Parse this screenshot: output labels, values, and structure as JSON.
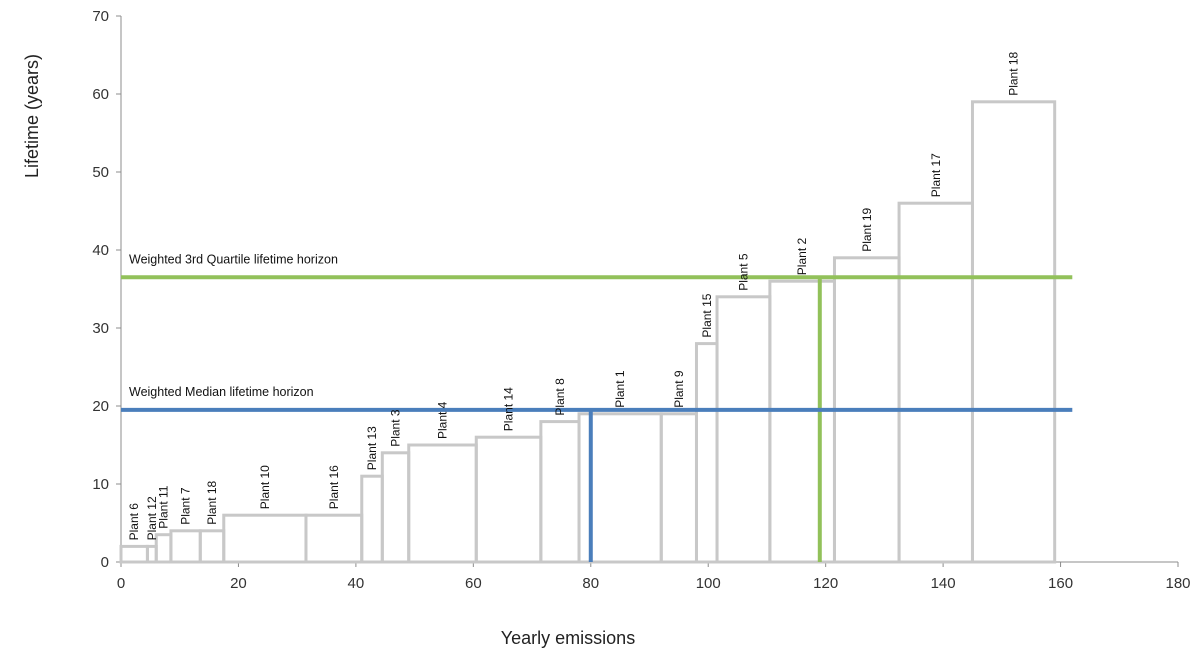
{
  "chart_data": {
    "type": "bar",
    "subtype": "variable-width step chart",
    "xlabel": "Yearly emissions",
    "ylabel": "Lifetime (years)",
    "xlim": [
      0,
      180
    ],
    "ylim": [
      0,
      70
    ],
    "xticks": [
      0,
      20,
      40,
      60,
      80,
      100,
      120,
      140,
      160,
      180
    ],
    "yticks": [
      0,
      10,
      20,
      30,
      40,
      50,
      60,
      70
    ],
    "grid": false,
    "bar_color": "#c8c8c8",
    "bars": [
      {
        "label": "Plant 6",
        "x0": 0,
        "x1": 4.5,
        "lifetime": 2
      },
      {
        "label": "Plant 12",
        "x0": 4.5,
        "x1": 6,
        "lifetime": 2
      },
      {
        "label": "Plant 11",
        "x0": 6,
        "x1": 8.5,
        "lifetime": 3.5
      },
      {
        "label": "Plant 7",
        "x0": 8.5,
        "x1": 13.5,
        "lifetime": 4
      },
      {
        "label": "Plant 18",
        "x0": 13.5,
        "x1": 17.5,
        "lifetime": 4
      },
      {
        "label": "Plant 10",
        "x0": 17.5,
        "x1": 31.5,
        "lifetime": 6
      },
      {
        "label": "Plant 16",
        "x0": 31.5,
        "x1": 41,
        "lifetime": 6
      },
      {
        "label": "Plant 13",
        "x0": 41,
        "x1": 44.5,
        "lifetime": 11
      },
      {
        "label": "Plant 3",
        "x0": 44.5,
        "x1": 49,
        "lifetime": 14
      },
      {
        "label": "Plant 4",
        "x0": 49,
        "x1": 60.5,
        "lifetime": 15
      },
      {
        "label": "Plant 14",
        "x0": 60.5,
        "x1": 71.5,
        "lifetime": 16
      },
      {
        "label": "Plant 8",
        "x0": 71.5,
        "x1": 78,
        "lifetime": 18
      },
      {
        "label": "Plant 1",
        "x0": 78,
        "x1": 92,
        "lifetime": 19
      },
      {
        "label": "Plant 9",
        "x0": 92,
        "x1": 98,
        "lifetime": 19
      },
      {
        "label": "Plant 15",
        "x0": 98,
        "x1": 101.5,
        "lifetime": 28
      },
      {
        "label": "Plant 5",
        "x0": 101.5,
        "x1": 110.5,
        "lifetime": 34
      },
      {
        "label": "Plant 2",
        "x0": 110.5,
        "x1": 121.5,
        "lifetime": 36
      },
      {
        "label": "Plant 19",
        "x0": 121.5,
        "x1": 132.5,
        "lifetime": 39
      },
      {
        "label": "Plant 17",
        "x0": 132.5,
        "x1": 145,
        "lifetime": 46
      },
      {
        "label": "Plant 18",
        "x0": 145,
        "x1": 159,
        "lifetime": 59
      }
    ],
    "horizons": [
      {
        "label": "Weighted 3rd Quartile lifetime horizon",
        "lifetime": 36.5,
        "emissions": 119,
        "color": "#92c15a"
      },
      {
        "label": "Weighted Median lifetime horizon",
        "lifetime": 19.5,
        "emissions": 80,
        "color": "#4a7ebb"
      }
    ],
    "horizon_x_range": [
      0,
      162
    ]
  }
}
